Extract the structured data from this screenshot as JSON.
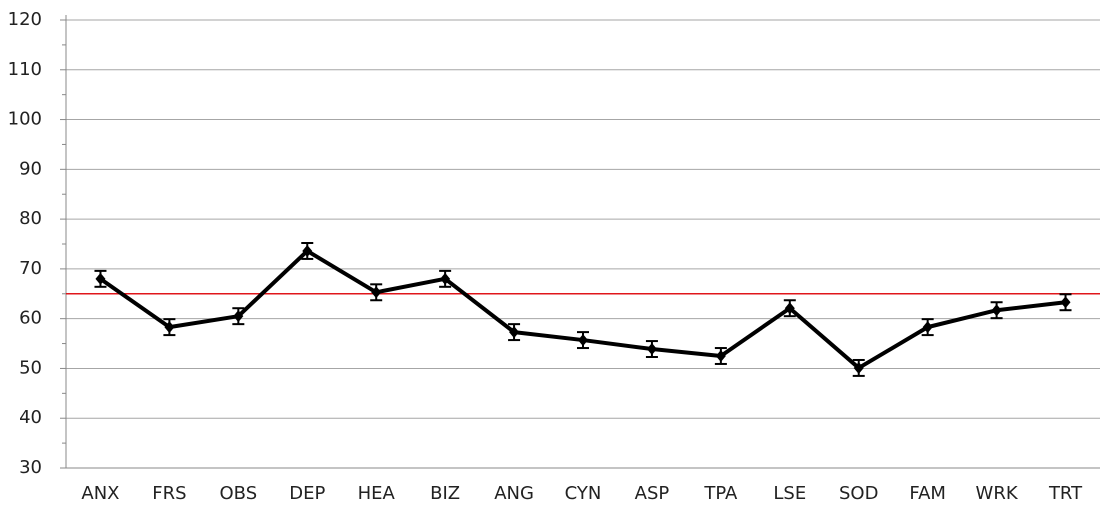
{
  "chart_data": {
    "type": "line",
    "categories": [
      "ANX",
      "FRS",
      "OBS",
      "DEP",
      "HEA",
      "BIZ",
      "ANG",
      "CYN",
      "ASP",
      "TPA",
      "LSE",
      "SOD",
      "FAM",
      "WRK",
      "TRT"
    ],
    "series": [
      {
        "color": "#000000",
        "values": [
          68,
          58.3,
          60.5,
          73.6,
          65.3,
          68,
          57.3,
          55.7,
          53.9,
          52.5,
          62.1,
          50.1,
          58.3,
          61.7,
          63.3
        ],
        "errors": [
          1.6,
          1.6,
          1.6,
          1.6,
          1.6,
          1.6,
          1.6,
          1.6,
          1.6,
          1.6,
          1.6,
          1.6,
          1.6,
          1.6,
          1.6
        ]
      }
    ],
    "ylim": [
      30,
      120
    ],
    "yticks": [
      30,
      40,
      50,
      60,
      70,
      80,
      90,
      100,
      110,
      120
    ],
    "yminorticks": [
      35,
      45,
      55,
      65,
      75,
      85,
      95,
      105,
      115
    ],
    "grid": true,
    "reference_line": {
      "value": 65,
      "color": "#e0161b"
    }
  }
}
